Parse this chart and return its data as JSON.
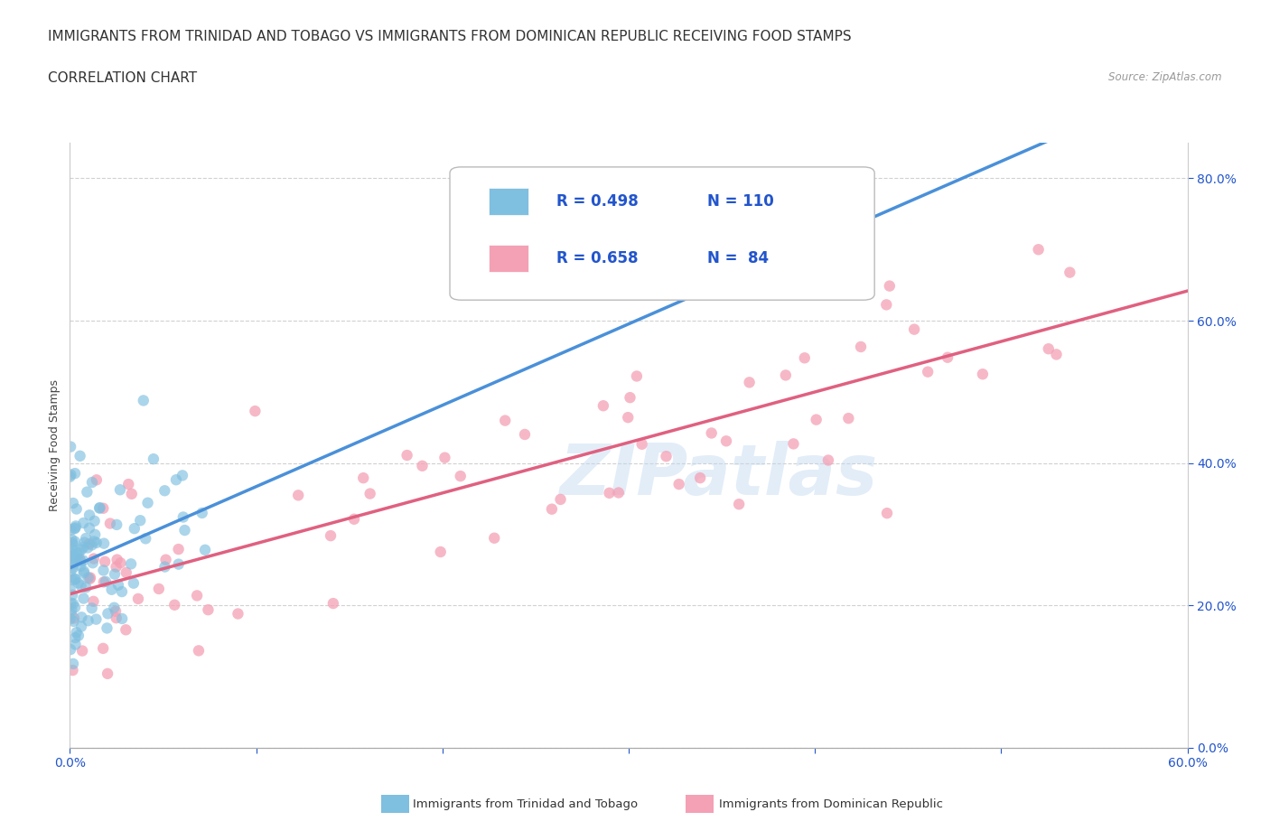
{
  "title_line1": "IMMIGRANTS FROM TRINIDAD AND TOBAGO VS IMMIGRANTS FROM DOMINICAN REPUBLIC RECEIVING FOOD STAMPS",
  "title_line2": "CORRELATION CHART",
  "source_text": "Source: ZipAtlas.com",
  "watermark": "ZIPatlas",
  "ylabel": "Receiving Food Stamps",
  "xlim": [
    0.0,
    0.6
  ],
  "ylim": [
    0.0,
    0.85
  ],
  "xticks": [
    0.0,
    0.1,
    0.2,
    0.3,
    0.4,
    0.5,
    0.6
  ],
  "xticklabels_show": [
    "0.0%",
    "",
    "",
    "",
    "",
    "",
    "60.0%"
  ],
  "yticks": [
    0.0,
    0.2,
    0.4,
    0.6,
    0.8
  ],
  "yticklabels_right": [
    "0.0%",
    "20.0%",
    "40.0%",
    "60.0%",
    "80.0%"
  ],
  "series1_color": "#7fbfdf",
  "series2_color": "#f4a0b5",
  "series1_label": "Immigrants from Trinidad and Tobago",
  "series2_label": "Immigrants from Dominican Republic",
  "series1_R": 0.498,
  "series1_N": 110,
  "series2_R": 0.658,
  "series2_N": 84,
  "series1_line_color": "#4a90d9",
  "series2_line_color": "#e06080",
  "legend_text_color": "#2255cc",
  "bg_color": "#ffffff",
  "grid_color": "#cccccc",
  "title_fontsize": 11,
  "axis_label_fontsize": 9,
  "tick_fontsize": 10,
  "seed": 42
}
